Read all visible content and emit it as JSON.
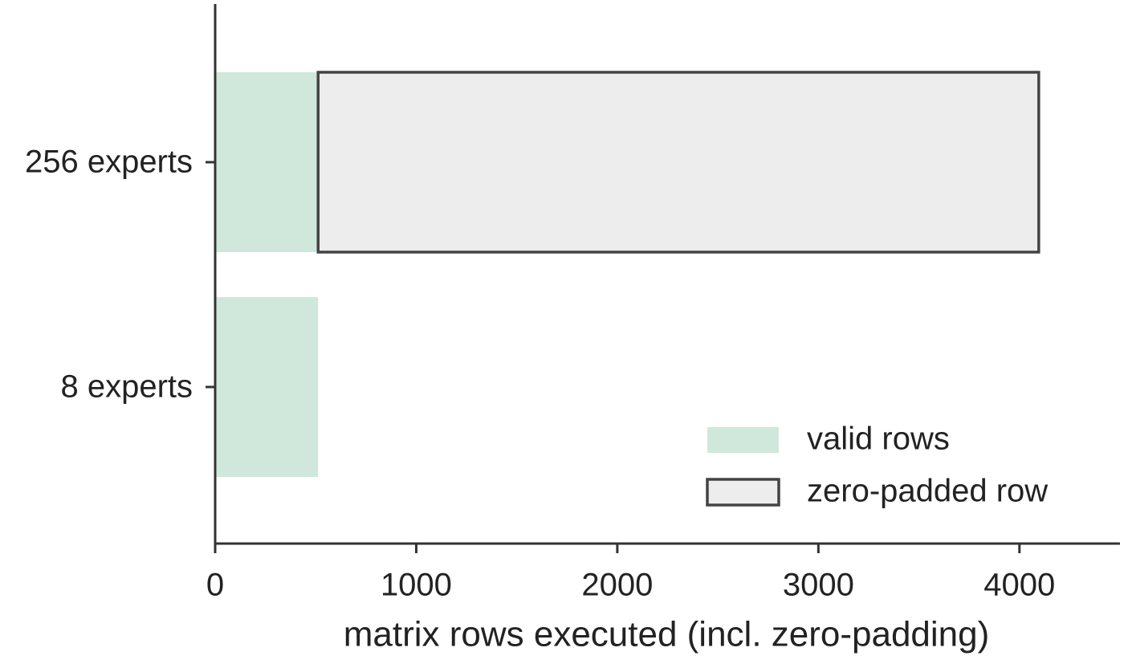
{
  "chart_data": {
    "type": "barh-stacked",
    "xlabel": "matrix rows executed (incl. zero-padding)",
    "categories": [
      "256 experts",
      "8 experts"
    ],
    "series": [
      {
        "name": "valid rows",
        "color": "#d0e8dc",
        "values": [
          512,
          512
        ]
      },
      {
        "name": "zero-padded row",
        "color": "#ededed",
        "edgecolor": "#444444",
        "values": [
          3584,
          0
        ]
      }
    ],
    "xlim": [
      0,
      4500
    ],
    "xticks": [
      0,
      1000,
      2000,
      3000,
      4000
    ],
    "legend": "lower right"
  }
}
